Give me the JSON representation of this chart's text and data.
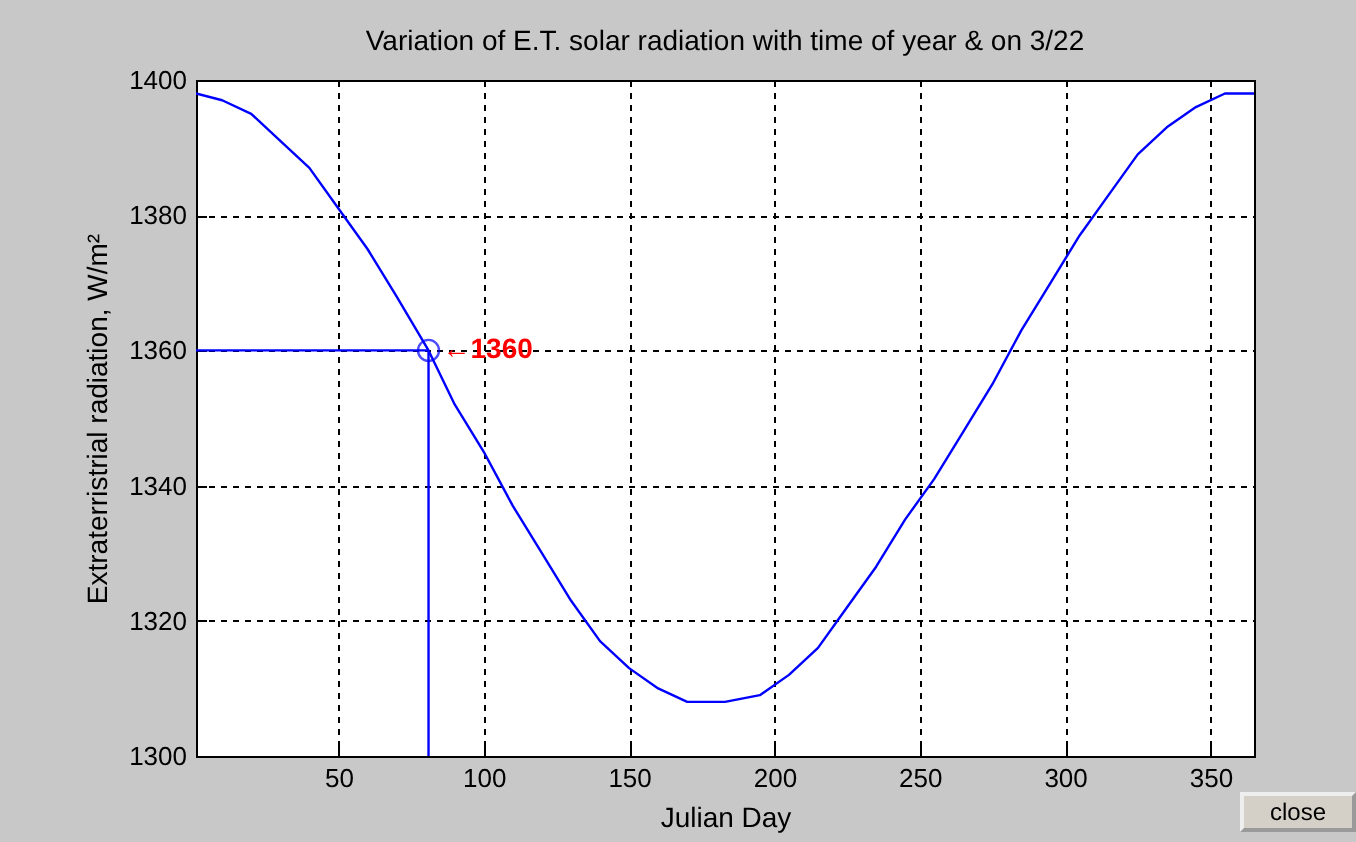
{
  "chart_data": {
    "type": "line",
    "title": "Variation of E.T. solar radiation with time of year & on 3/22",
    "xlabel": "Julian Day",
    "ylabel": "Extraterristrial radiation, W/m²",
    "xlim": [
      1,
      365
    ],
    "xticks": [
      50,
      100,
      150,
      200,
      250,
      300,
      350
    ],
    "ylim": [
      1300,
      1400
    ],
    "yticks": [
      1300,
      1320,
      1340,
      1360,
      1380,
      1400
    ],
    "grid": true,
    "line_style": "solid",
    "series": [
      {
        "color": "#0000ff",
        "x": [
          1,
          10,
          20,
          30,
          40,
          50,
          60,
          70,
          81,
          90,
          100,
          110,
          120,
          130,
          140,
          150,
          160,
          170,
          183,
          195,
          205,
          215,
          225,
          235,
          245,
          255,
          265,
          275,
          285,
          295,
          305,
          315,
          325,
          335,
          345,
          355,
          365
        ],
        "values": [
          1398,
          1397,
          1395,
          1391,
          1387,
          1381,
          1375,
          1368,
          1360,
          1352,
          1345,
          1337,
          1330,
          1323,
          1317,
          1313,
          1310,
          1308,
          1308,
          1309,
          1312,
          1316,
          1322,
          1328,
          1335,
          1341,
          1348,
          1355,
          1363,
          1370,
          1377,
          1383,
          1389,
          1393,
          1396,
          1398,
          1398
        ]
      },
      {
        "type": "line",
        "color": "#0000ff",
        "x": [
          1,
          81
        ],
        "values": [
          1360,
          1360
        ]
      },
      {
        "type": "line",
        "color": "#0000ff",
        "x": [
          81,
          81
        ],
        "values": [
          1300,
          1360
        ]
      },
      {
        "type": "scatter",
        "color": "#0000ff",
        "marker": "circle",
        "x": [
          81
        ],
        "values": [
          1360
        ]
      }
    ],
    "annotations": [
      {
        "text": "←1360",
        "x": 81,
        "y": 1360
      },
      "close"
    ]
  }
}
